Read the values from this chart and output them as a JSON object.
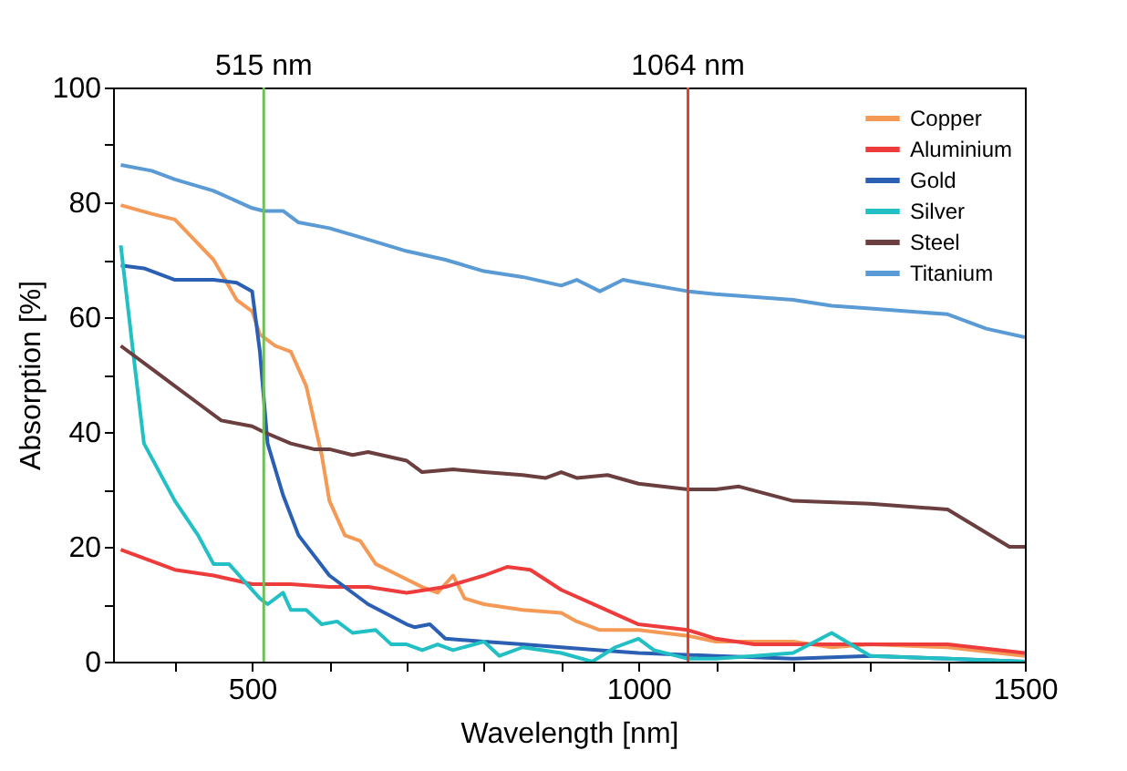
{
  "chart_data": {
    "type": "line",
    "xlabel": "Wavelength [nm]",
    "ylabel": "Absorption [%]",
    "xlim": [
      320,
      1500
    ],
    "ylim": [
      0,
      100
    ],
    "xticks": [
      {
        "value": 400,
        "label": null
      },
      500,
      {
        "value": 600,
        "label": null
      },
      {
        "value": 700,
        "label": null
      },
      {
        "value": 800,
        "label": null
      },
      {
        "value": 900,
        "label": null
      },
      1000,
      {
        "value": 1100,
        "label": null
      },
      {
        "value": 1200,
        "label": null
      },
      {
        "value": 1300,
        "label": null
      },
      {
        "value": 1400,
        "label": null
      },
      1500
    ],
    "yticks": [
      0,
      {
        "value": 10,
        "label": null
      },
      20,
      {
        "value": 30,
        "label": null
      },
      40,
      {
        "value": 50,
        "label": null
      },
      60,
      {
        "value": 70,
        "label": null
      },
      80,
      {
        "value": 90,
        "label": null
      },
      100
    ],
    "grid": false,
    "legend": "top right",
    "line_style": "solid",
    "marker": "none",
    "ref_lines": [
      {
        "axis": "x",
        "value": 515,
        "label": "515 nm",
        "color": "#70c05a"
      },
      {
        "axis": "x",
        "value": 1064,
        "label": "1064 nm",
        "color": "#e0442e"
      }
    ],
    "series": [
      {
        "name": "Copper",
        "color": "#f59a56",
        "x": [
          330,
          370,
          400,
          450,
          480,
          500,
          510,
          530,
          550,
          570,
          590,
          600,
          620,
          640,
          660,
          690,
          720,
          740,
          760,
          775,
          800,
          850,
          900,
          920,
          950,
          1000,
          1064,
          1100,
          1200,
          1250,
          1300,
          1400,
          1500
        ],
        "values": [
          79.5,
          78,
          77,
          70,
          63,
          61,
          57,
          55,
          54,
          48,
          36,
          28,
          22,
          21,
          17,
          15,
          13,
          12,
          15,
          11,
          10,
          9,
          8.5,
          7,
          5.5,
          5.5,
          4.5,
          3.5,
          3.5,
          2.5,
          3,
          2.5,
          1
        ]
      },
      {
        "name": "Aluminium",
        "color": "#ee3b3b",
        "x": [
          330,
          400,
          450,
          500,
          550,
          600,
          650,
          700,
          750,
          800,
          830,
          860,
          900,
          950,
          1000,
          1064,
          1100,
          1150,
          1200,
          1300,
          1400,
          1500
        ],
        "values": [
          19.5,
          16,
          15,
          13.5,
          13.5,
          13,
          13,
          12,
          13,
          15,
          16.5,
          16,
          12.5,
          9.5,
          6.5,
          5.5,
          4,
          3,
          3,
          3,
          3,
          1.5
        ]
      },
      {
        "name": "Gold",
        "color": "#2b5fb3",
        "x": [
          330,
          360,
          400,
          450,
          480,
          500,
          510,
          520,
          540,
          560,
          600,
          650,
          700,
          710,
          730,
          750,
          800,
          850,
          900,
          950,
          1000,
          1100,
          1200,
          1300,
          1400,
          1500
        ],
        "values": [
          69,
          68.5,
          66.5,
          66.5,
          66,
          64.5,
          54,
          38,
          29,
          22,
          15,
          10,
          6.5,
          6,
          6.5,
          4,
          3.5,
          3,
          2.5,
          2,
          1.5,
          1,
          0.5,
          1,
          0.5,
          0
        ]
      },
      {
        "name": "Silver",
        "color": "#22bfc4",
        "x": [
          330,
          345,
          360,
          400,
          430,
          450,
          470,
          490,
          510,
          520,
          540,
          550,
          570,
          590,
          610,
          630,
          660,
          680,
          700,
          720,
          740,
          760,
          800,
          820,
          850,
          900,
          940,
          970,
          1000,
          1020,
          1064,
          1100,
          1150,
          1200,
          1250,
          1300,
          1400,
          1500
        ],
        "values": [
          72.5,
          55,
          38,
          28,
          22,
          17,
          17,
          14,
          11,
          10,
          12,
          9,
          9,
          6.5,
          7,
          5,
          5.5,
          3,
          3,
          2,
          3,
          2,
          3.5,
          1,
          2.5,
          1.5,
          0,
          2.5,
          4,
          2,
          0.5,
          0.5,
          1,
          1.5,
          5,
          1,
          0.5,
          0
        ]
      },
      {
        "name": "Steel",
        "color": "#6b3f3f",
        "x": [
          330,
          370,
          400,
          430,
          460,
          500,
          515,
          550,
          580,
          600,
          630,
          650,
          700,
          720,
          760,
          800,
          850,
          880,
          900,
          920,
          960,
          1000,
          1064,
          1100,
          1130,
          1200,
          1300,
          1400,
          1480,
          1500
        ],
        "values": [
          55,
          51,
          48,
          45,
          42,
          41,
          40,
          38,
          37,
          37,
          36,
          36.5,
          35,
          33,
          33.5,
          33,
          32.5,
          32,
          33,
          32,
          32.5,
          31,
          30,
          30,
          30.5,
          28,
          27.5,
          26.5,
          20,
          20
        ]
      },
      {
        "name": "Titanium",
        "color": "#5b9bd5",
        "x": [
          330,
          370,
          400,
          450,
          500,
          515,
          540,
          560,
          600,
          650,
          700,
          750,
          800,
          850,
          900,
          920,
          950,
          980,
          1000,
          1064,
          1100,
          1200,
          1250,
          1300,
          1400,
          1450,
          1500
        ],
        "values": [
          86.5,
          85.5,
          84,
          82,
          79,
          78.5,
          78.5,
          76.5,
          75.5,
          73.5,
          71.5,
          70,
          68,
          67,
          65.5,
          66.5,
          64.5,
          66.5,
          66,
          64.5,
          64,
          63,
          62,
          61.5,
          60.5,
          58,
          56.5
        ]
      }
    ]
  }
}
